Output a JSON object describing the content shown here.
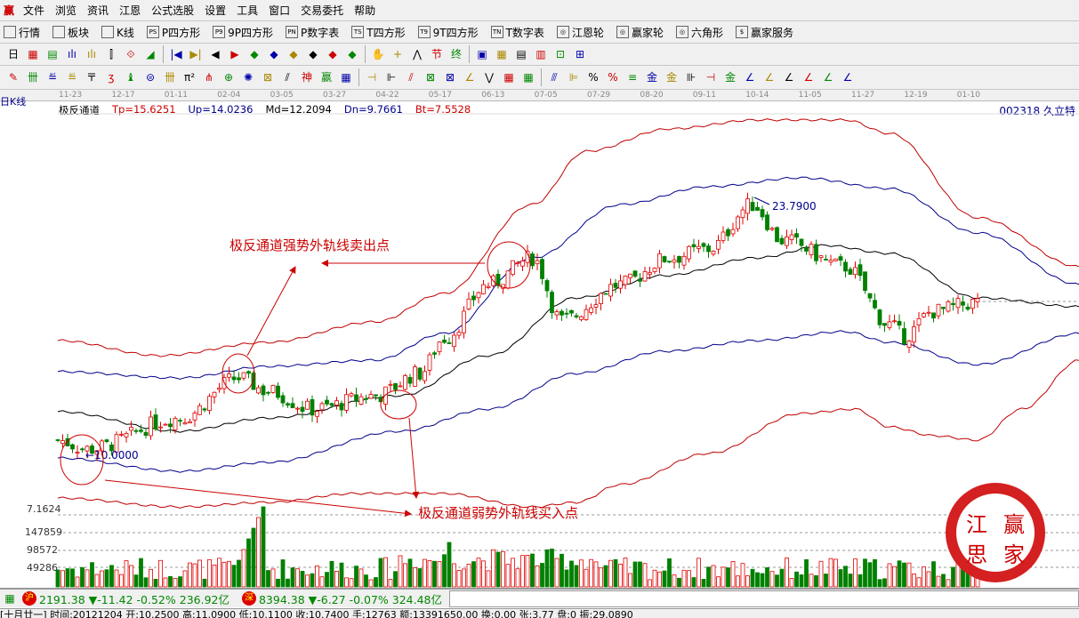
{
  "menu": {
    "logo": "赢",
    "items": [
      "文件",
      "浏览",
      "资讯",
      "江恩",
      "公式选股",
      "设置",
      "工具",
      "窗口",
      "交易委托",
      "帮助"
    ]
  },
  "toolbar1": [
    {
      "icon": "table-icon",
      "tag": "",
      "label": "行情"
    },
    {
      "icon": "blocks-icon",
      "tag": "",
      "label": "板块"
    },
    {
      "icon": "kline-icon",
      "tag": "",
      "label": "K线"
    },
    {
      "icon": "ps-icon",
      "tag": "PS",
      "label": "P四方形"
    },
    {
      "icon": "p9-icon",
      "tag": "P9",
      "label": "9P四方形"
    },
    {
      "icon": "pn-icon",
      "tag": "PN",
      "label": "P数字表"
    },
    {
      "icon": "ts-icon",
      "tag": "TS",
      "label": "T四方形"
    },
    {
      "icon": "t9-icon",
      "tag": "T9",
      "label": "9T四方形"
    },
    {
      "icon": "tn-icon",
      "tag": "TN",
      "label": "T数字表"
    },
    {
      "icon": "gann-wheel-icon",
      "tag": "◎",
      "label": "江恩轮"
    },
    {
      "icon": "winner-wheel-icon",
      "tag": "◎",
      "label": "赢家轮"
    },
    {
      "icon": "hexagon-icon",
      "tag": "◎",
      "label": "六角形"
    },
    {
      "icon": "dollar-icon",
      "tag": "$",
      "label": "赢家服务"
    }
  ],
  "toolbar2": {
    "period": "日",
    "icons": [
      "▦",
      "▤",
      "ılı",
      "ılı",
      "⫿",
      "⟐",
      "◢",
      "|◀",
      "▶|",
      "◀",
      "▶",
      "◆",
      "◆",
      "◆",
      "◆",
      "◆",
      "◆",
      "✋",
      "+",
      "⋀",
      "节",
      "终",
      "▣",
      "▦",
      "▤",
      "▥",
      "⊡",
      "⊞"
    ]
  },
  "toolbar3": {
    "icons": [
      "✎",
      "卌",
      "≝",
      "≝",
      "〒",
      "ʒ",
      "♝",
      "⊜",
      "卌",
      "π²",
      "⋔",
      "⊕",
      "✺",
      "⊠",
      "⫽",
      "神",
      "赢",
      "▦",
      "⊣",
      "⊩",
      "⫽",
      "⊠",
      "⊠",
      "∠",
      "⋁",
      "▦",
      "▦",
      "⫻",
      "⊫",
      "%",
      "%",
      "≡",
      "金",
      "金",
      "⊪",
      "⊣",
      "金",
      "∠",
      "∠",
      "∠",
      "∠",
      "∠",
      "∠"
    ]
  },
  "dates": [
    "11-23",
    "12-17",
    "01-11",
    "02-04",
    "03-05",
    "03-27",
    "04-22",
    "05-17",
    "06-13",
    "07-05",
    "07-29",
    "08-20",
    "09-11",
    "10-14",
    "11-05",
    "11-27",
    "12-19",
    "01-10"
  ],
  "period_label": "日K线",
  "indicator": {
    "name": "极反通道",
    "tp": "Tp=15.6251",
    "up": "Up=14.0236",
    "md": "Md=12.2094",
    "dn": "Dn=9.7661",
    "bt": "Bt=7.5528"
  },
  "stock": "002318 久立特",
  "colors": {
    "up": "#e00000",
    "down": "#008000",
    "md": "#000000",
    "inner": "#00008b",
    "outer": "#c00000"
  },
  "chart_data": {
    "type": "candlestick",
    "price_markers": {
      "high": "23.7900",
      "low": "10.0000"
    },
    "close_keyframes": [
      [
        0,
        10.83
      ],
      [
        6,
        10.34
      ],
      [
        25,
        12.05
      ],
      [
        37,
        14.25
      ],
      [
        43,
        13.52
      ],
      [
        52,
        12.54
      ],
      [
        65,
        13.28
      ],
      [
        74,
        14.5
      ],
      [
        79,
        16.45
      ],
      [
        88,
        19.39
      ],
      [
        97,
        20.86
      ],
      [
        103,
        17.43
      ],
      [
        115,
        19.39
      ],
      [
        125,
        20.86
      ],
      [
        133,
        21.34
      ],
      [
        142,
        23.79
      ],
      [
        148,
        21.83
      ],
      [
        161,
        20.37
      ],
      [
        170,
        17.19
      ],
      [
        173,
        16.55
      ],
      [
        179,
        17.92
      ],
      [
        188,
        18.41
      ]
    ],
    "tp": [
      [
        0,
        16.31
      ],
      [
        21,
        15.48
      ],
      [
        43,
        16.21
      ],
      [
        65,
        17.34
      ],
      [
        79,
        18.9
      ],
      [
        97,
        23.79
      ],
      [
        108,
        26.72
      ],
      [
        125,
        27.95
      ],
      [
        143,
        28.44
      ],
      [
        161,
        28.44
      ],
      [
        170,
        27.7
      ],
      [
        188,
        23.06
      ],
      [
        209,
        20.37
      ]
    ],
    "up": [
      [
        0,
        14.6
      ],
      [
        25,
        14.25
      ],
      [
        43,
        14.89
      ],
      [
        65,
        15.23
      ],
      [
        79,
        16.7
      ],
      [
        97,
        20.86
      ],
      [
        115,
        23.79
      ],
      [
        133,
        24.77
      ],
      [
        152,
        25.26
      ],
      [
        170,
        24.67
      ],
      [
        188,
        22.23
      ],
      [
        209,
        19.39
      ]
    ],
    "md": [
      [
        0,
        12.4
      ],
      [
        25,
        11.32
      ],
      [
        43,
        12.05
      ],
      [
        70,
        13.28
      ],
      [
        88,
        15.48
      ],
      [
        106,
        18.66
      ],
      [
        124,
        19.88
      ],
      [
        143,
        20.86
      ],
      [
        157,
        21.54
      ],
      [
        170,
        21.1
      ],
      [
        188,
        18.66
      ],
      [
        209,
        18.17
      ]
    ],
    "dn": [
      [
        0,
        9.85
      ],
      [
        25,
        9.12
      ],
      [
        43,
        9.61
      ],
      [
        70,
        11.32
      ],
      [
        88,
        12.54
      ],
      [
        106,
        14.5
      ],
      [
        124,
        15.72
      ],
      [
        143,
        16.31
      ],
      [
        161,
        16.8
      ],
      [
        170,
        16.21
      ],
      [
        188,
        14.99
      ],
      [
        209,
        16.7
      ]
    ],
    "bt": [
      [
        0,
        7.65
      ],
      [
        25,
        7.16
      ],
      [
        43,
        7.41
      ],
      [
        61,
        7.9
      ],
      [
        79,
        7.9
      ],
      [
        97,
        7.16
      ],
      [
        106,
        7.41
      ],
      [
        115,
        8.39
      ],
      [
        133,
        10.1
      ],
      [
        152,
        12.3
      ],
      [
        163,
        12.54
      ],
      [
        170,
        11.56
      ],
      [
        179,
        11.08
      ],
      [
        188,
        10.83
      ],
      [
        197,
        12.54
      ],
      [
        209,
        15.23
      ]
    ],
    "volume_axis": [
      "7.1624",
      "147859",
      "98572",
      "49286"
    ]
  },
  "annotations": {
    "sell": "极反通道强势外轨线卖出点",
    "buy": "极反通道弱势外轨线买入点"
  },
  "logo_text": "江赢思家",
  "index_bar": {
    "sh_seal": "沪",
    "sh": "2191.38 ▼-11.42 -0.52% 236.92亿",
    "sz_seal": "深",
    "sz": "8394.38 ▼-6.27 -0.07% 324.48亿"
  },
  "status": "[十月廿一] 时间:20121204 开:10.2500 高:11.0900 低:10.1100 收:10.7400 手:12763 额:13391650.00 换:0.00 张:3.77 盘:0 振:29.0890"
}
